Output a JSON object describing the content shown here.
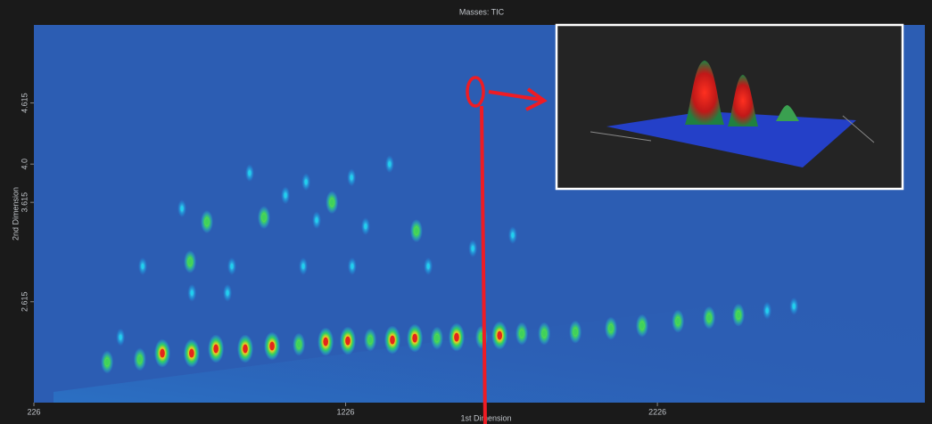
{
  "chart_data": {
    "type": "scatter",
    "title": "Masses: TIC",
    "xlabel": "1st Dimension",
    "ylabel": "2nd Dimension",
    "xlim": [
      226,
      3084
    ],
    "xticks": [
      226,
      1226,
      2226
    ],
    "ylim": [
      1.6,
      5.4
    ],
    "yticks": [
      2.615,
      3.615,
      {
        "value": 4,
        "label": "4.0"
      },
      4.615
    ],
    "colors": [
      "#1fd0ee",
      "#3fd35a",
      "#e3261c"
    ],
    "x": [
      461,
      566,
      638,
      732,
      810,
      904,
      990,
      1076,
      1162,
      1233,
      1305,
      1376,
      1448,
      1519,
      1582,
      1662,
      1720,
      1791,
      1863,
      1963,
      2077,
      2177,
      2292,
      2392,
      2486,
      2578,
      2664,
      504,
      727,
      733,
      781,
      701,
      964,
      1033,
      1099,
      1182,
      1133,
      1245,
      1367,
      1290,
      1453,
      1247,
      1090,
      918,
      1491,
      1634,
      1762,
      861,
      575,
      847
    ],
    "y": [
      2.008,
      2.035,
      2.097,
      2.097,
      2.142,
      2.142,
      2.169,
      2.186,
      2.213,
      2.222,
      2.231,
      2.231,
      2.249,
      2.249,
      2.258,
      2.258,
      2.276,
      2.294,
      2.294,
      2.311,
      2.347,
      2.374,
      2.419,
      2.454,
      2.481,
      2.526,
      2.57,
      2.258,
      3.017,
      2.704,
      3.419,
      3.553,
      3.463,
      3.686,
      3.82,
      3.615,
      3.436,
      3.865,
      4.0,
      3.374,
      3.329,
      2.972,
      2.972,
      3.91,
      2.972,
      3.151,
      3.285,
      2.972,
      2.972,
      2.704
    ],
    "z": [
      2,
      2,
      3,
      3,
      3,
      3,
      3,
      2,
      3,
      3,
      2,
      3,
      3,
      2,
      3,
      2,
      3,
      2,
      2,
      2,
      2,
      2,
      2,
      2,
      2,
      1,
      1,
      1,
      2,
      1,
      2,
      1,
      2,
      1,
      1,
      2,
      1,
      1,
      1,
      1,
      2,
      1,
      1,
      1,
      1,
      1,
      1,
      1,
      1,
      1
    ]
  }
}
